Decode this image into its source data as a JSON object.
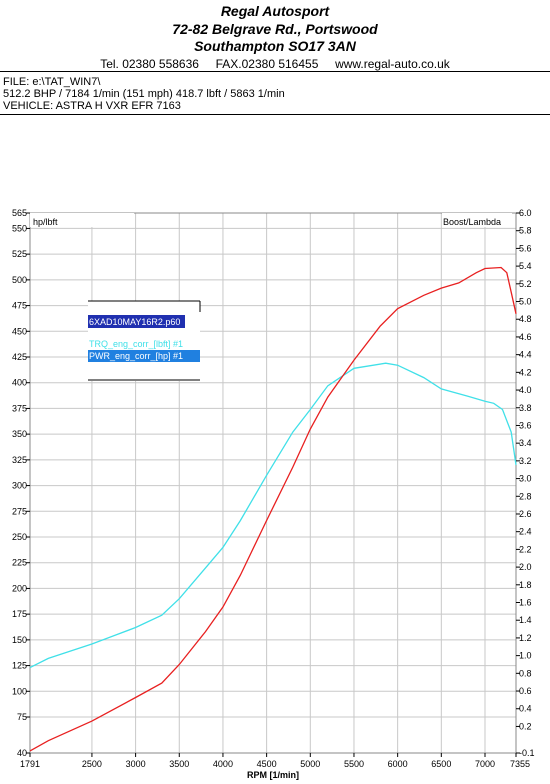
{
  "header": {
    "company": "Regal Autosport",
    "address1": "72-82 Belgrave Rd., Portswood",
    "address2": "Southampton SO17 3AN",
    "tel": "Tel. 02380 558636",
    "fax": "FAX.02380 516455",
    "web": "www.regal-auto.co.uk"
  },
  "info": {
    "file": "FILE: e:\\TAT_WIN7\\",
    "result": "512.2 BHP / 7184 1/min (151 mph)     418.7 lbft / 5863 1/min",
    "vehicle": "VEHICLE: ASTRA H VXR EFR 7163"
  },
  "legend": {
    "file_label": "6XAD10MAY16R2.p60",
    "trq_label": "TRQ_eng_corr_[lbft] #1",
    "pwr_label": "PWR_eng_corr_[hp] #1"
  },
  "chart_data": {
    "type": "line",
    "xlabel": "RPM  [1/min]",
    "ylabel_left": "hp/lbft",
    "ylabel_right": "Boost/Lambda",
    "xlim": [
      1791,
      7355
    ],
    "ylim_left": [
      40,
      565
    ],
    "ylim_right": [
      -0.1,
      6.0
    ],
    "x_ticks": [
      1791,
      2500,
      3000,
      3500,
      4000,
      4500,
      5000,
      5500,
      6000,
      6500,
      7000,
      7355
    ],
    "y_ticks_left": [
      40,
      75,
      100,
      125,
      150,
      175,
      200,
      225,
      250,
      275,
      300,
      325,
      350,
      375,
      400,
      425,
      450,
      475,
      500,
      525,
      550,
      565
    ],
    "y_ticks_right": [
      -0.1,
      0.2,
      0.4,
      0.6,
      0.8,
      1.0,
      1.2,
      1.4,
      1.6,
      1.8,
      2.0,
      2.2,
      2.4,
      2.6,
      2.8,
      3.0,
      3.2,
      3.4,
      3.6,
      3.8,
      4.0,
      4.2,
      4.4,
      4.6,
      4.8,
      5.0,
      5.2,
      5.4,
      5.6,
      5.8,
      6.0
    ],
    "grid": true,
    "series": [
      {
        "name": "TRQ_eng_corr_[lbft] #1",
        "color": "#40e0e8",
        "points": [
          [
            1791,
            123
          ],
          [
            2000,
            132
          ],
          [
            2500,
            146
          ],
          [
            3000,
            162
          ],
          [
            3300,
            174
          ],
          [
            3500,
            190
          ],
          [
            3800,
            220
          ],
          [
            4000,
            240
          ],
          [
            4200,
            266
          ],
          [
            4500,
            310
          ],
          [
            4800,
            352
          ],
          [
            5000,
            374
          ],
          [
            5200,
            397
          ],
          [
            5500,
            414
          ],
          [
            5863,
            419
          ],
          [
            6000,
            417
          ],
          [
            6300,
            405
          ],
          [
            6500,
            394
          ],
          [
            6800,
            387
          ],
          [
            7000,
            382
          ],
          [
            7100,
            380
          ],
          [
            7200,
            374
          ],
          [
            7300,
            352
          ],
          [
            7355,
            320
          ]
        ]
      },
      {
        "name": "PWR_eng_corr_[hp] #1",
        "color": "#e82020",
        "points": [
          [
            1791,
            42
          ],
          [
            2000,
            52
          ],
          [
            2500,
            71
          ],
          [
            3000,
            94
          ],
          [
            3300,
            108
          ],
          [
            3500,
            126
          ],
          [
            3800,
            158
          ],
          [
            4000,
            182
          ],
          [
            4200,
            213
          ],
          [
            4500,
            266
          ],
          [
            4800,
            318
          ],
          [
            5000,
            355
          ],
          [
            5200,
            386
          ],
          [
            5500,
            422
          ],
          [
            5800,
            455
          ],
          [
            6000,
            472
          ],
          [
            6300,
            485
          ],
          [
            6500,
            492
          ],
          [
            6700,
            497
          ],
          [
            6900,
            507
          ],
          [
            7000,
            511
          ],
          [
            7184,
            512
          ],
          [
            7250,
            507
          ],
          [
            7300,
            488
          ],
          [
            7355,
            467
          ]
        ]
      }
    ]
  }
}
